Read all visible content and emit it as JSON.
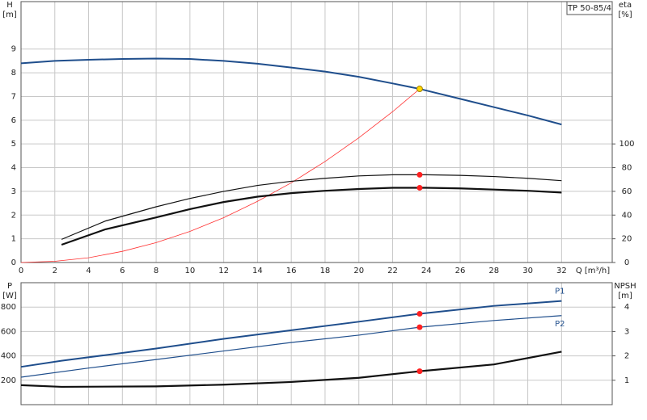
{
  "chart_data": [
    {
      "type": "line",
      "title": "TP 50-85/4",
      "y_label": "H",
      "y_unit": "[m]",
      "y2_label": "eta",
      "y2_unit": "[%]",
      "x_label": "Q [m³/h]",
      "xlim": [
        0,
        35
      ],
      "xticks": [
        0,
        2,
        4,
        6,
        8,
        10,
        12,
        14,
        16,
        18,
        20,
        22,
        24,
        26,
        28,
        30,
        32
      ],
      "ylim": [
        0,
        11
      ],
      "yticks": [
        0,
        1,
        2,
        3,
        4,
        5,
        6,
        7,
        8,
        9
      ],
      "y2lim": [
        0,
        220
      ],
      "y2ticks": [
        0,
        20,
        40,
        60,
        80,
        100
      ],
      "grid": true,
      "series": [
        {
          "color": "#1f4e8c",
          "width": 2,
          "x": [
            0,
            2,
            4,
            6,
            8,
            10,
            12,
            14,
            16,
            18,
            20,
            22,
            23.6,
            26,
            28,
            30,
            32
          ],
          "values": [
            8.4,
            8.5,
            8.55,
            8.58,
            8.6,
            8.58,
            8.5,
            8.38,
            8.22,
            8.05,
            7.83,
            7.55,
            7.32,
            6.9,
            6.55,
            6.2,
            5.82
          ]
        },
        {
          "color": "#ff3030",
          "width": 0.8,
          "x": [
            0,
            2,
            4,
            6,
            8,
            10,
            12,
            14,
            16,
            18,
            20,
            22,
            23.6
          ],
          "values": [
            0,
            0.05,
            0.2,
            0.47,
            0.84,
            1.31,
            1.89,
            2.58,
            3.36,
            4.26,
            5.26,
            6.36,
            7.32
          ]
        },
        {
          "color": "#111111",
          "width": 1.2,
          "axis": "y2",
          "x": [
            2.4,
            5,
            8,
            10,
            12,
            14,
            16,
            18,
            20,
            22,
            24,
            26,
            28,
            30,
            32
          ],
          "values": [
            19.5,
            35,
            47,
            54,
            60,
            65,
            68.5,
            71,
            73,
            74,
            74,
            73.5,
            72.5,
            71,
            69
          ]
        },
        {
          "color": "#111111",
          "width": 2.2,
          "axis": "y2",
          "x": [
            2.4,
            5,
            8,
            10,
            12,
            14,
            16,
            18,
            20,
            22,
            24,
            26,
            28,
            30,
            32
          ],
          "values": [
            15,
            28,
            38,
            45,
            51,
            55.5,
            58.5,
            60.5,
            62,
            63,
            63,
            62.5,
            61.5,
            60.5,
            59
          ]
        }
      ],
      "markers": [
        {
          "x": 23.6,
          "y": 7.32,
          "color": "#ffd700"
        },
        {
          "x": 23.6,
          "y": 74,
          "color": "#ff2020",
          "axis": "y2"
        },
        {
          "x": 23.6,
          "y": 63,
          "color": "#ff2020",
          "axis": "y2"
        }
      ]
    },
    {
      "type": "line",
      "y_label": "P",
      "y_unit": "[W]",
      "y2_label": "NPSH",
      "y2_unit": "[m]",
      "xlim": [
        0,
        35
      ],
      "xticks": [
        0,
        2,
        4,
        6,
        8,
        10,
        12,
        14,
        16,
        18,
        20,
        22,
        24,
        26,
        28,
        30,
        32
      ],
      "ylim": [
        0,
        1000
      ],
      "yticks": [
        200,
        400,
        600,
        800
      ],
      "y2lim": [
        0,
        5
      ],
      "y2ticks": [
        1,
        2,
        3,
        4
      ],
      "grid": true,
      "series": [
        {
          "name": "P1",
          "color": "#1f4e8c",
          "width": 2,
          "x": [
            0,
            2.4,
            8,
            12,
            16,
            20,
            23.6,
            28,
            32
          ],
          "values": [
            310,
            360,
            460,
            540,
            610,
            680,
            745,
            810,
            850
          ]
        },
        {
          "name": "P2",
          "color": "#1f4e8c",
          "width": 1.2,
          "x": [
            0,
            4,
            8,
            12,
            16,
            20,
            23.6,
            28,
            32
          ],
          "values": [
            225,
            300,
            370,
            440,
            510,
            570,
            635,
            690,
            730
          ]
        },
        {
          "color": "#111111",
          "width": 2.2,
          "axis": "y2",
          "x": [
            0,
            2.4,
            8,
            12,
            16,
            20,
            23.6,
            28,
            32
          ],
          "values": [
            0.8,
            0.73,
            0.75,
            0.82,
            0.93,
            1.1,
            1.37,
            1.65,
            2.17
          ]
        }
      ],
      "markers": [
        {
          "x": 23.6,
          "y": 745,
          "color": "#ff2020"
        },
        {
          "x": 23.6,
          "y": 635,
          "color": "#ff2020"
        },
        {
          "x": 23.6,
          "y": 1.37,
          "color": "#ff2020",
          "axis": "y2"
        }
      ]
    }
  ]
}
